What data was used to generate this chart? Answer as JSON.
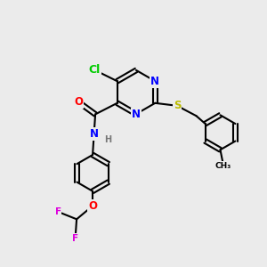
{
  "bg_color": "#ebebeb",
  "bond_color": "#000000",
  "bond_width": 1.5,
  "dbo": 0.08,
  "atom_colors": {
    "Cl": "#00cc00",
    "N": "#0000ff",
    "O": "#ff0000",
    "S": "#bbbb00",
    "F": "#dd00dd",
    "H": "#777777",
    "C": "#000000"
  },
  "font_size": 8.5
}
